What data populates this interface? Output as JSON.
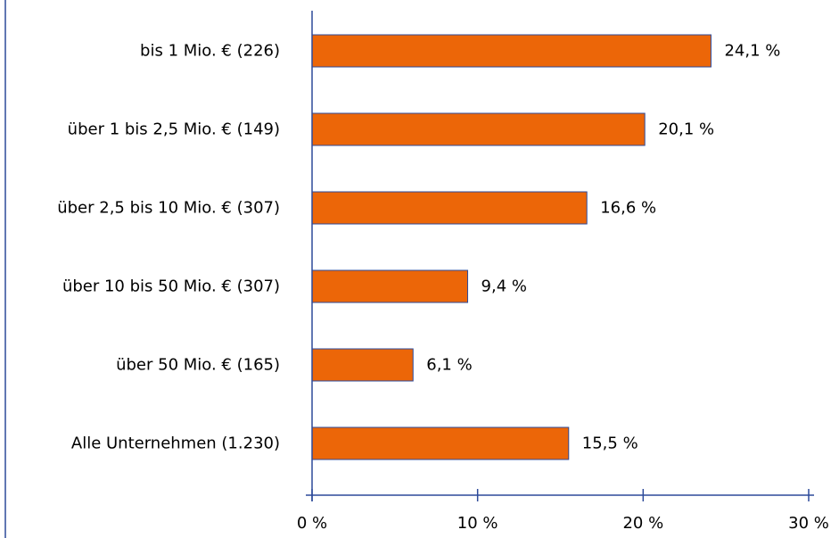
{
  "chart_data": {
    "type": "bar",
    "orientation": "horizontal",
    "categories": [
      "bis 1 Mio. € (226)",
      "über 1 bis 2,5 Mio. € (149)",
      "über 2,5 bis 10 Mio. € (307)",
      "über 10 bis 50 Mio. € (307)",
      "über 50 Mio. € (165)",
      "Alle Unternehmen (1.230)"
    ],
    "values": [
      24.1,
      20.1,
      16.6,
      9.4,
      6.1,
      15.5
    ],
    "value_labels": [
      "24,1 %",
      "20,1 %",
      "16,6 %",
      "9,4 %",
      "6,1 %",
      "15,5 %"
    ],
    "xlim": [
      0,
      30
    ],
    "xticks": [
      0,
      10,
      20,
      30
    ],
    "xtick_labels": [
      "0 %",
      "10 %",
      "20 %",
      "30 %"
    ],
    "title": "",
    "xlabel": "",
    "ylabel": "",
    "grid": false,
    "colors": {
      "bar_fill": "#ec6608",
      "bar_stroke": "#2d4a9a",
      "axis": "#2d4a9a"
    }
  }
}
